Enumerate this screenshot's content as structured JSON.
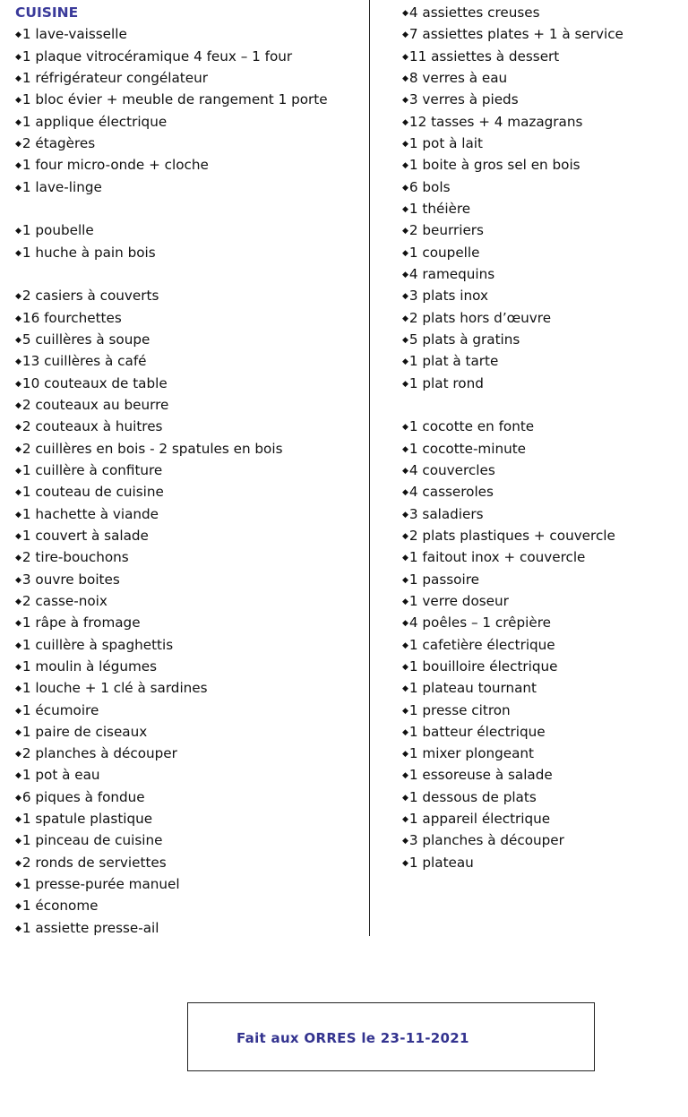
{
  "heading": "CUISINE",
  "bullet_icon": "diamond-bullet",
  "heading_color": "#3a3a9a",
  "left_items": [
    "1 lave-vaisselle",
    "1 plaque vitrocéramique 4 feux – 1 four",
    "1 réfrigérateur congélateur",
    "1 bloc évier + meuble de rangement 1 porte",
    "1 applique électrique",
    "2 étagères",
    "1 four micro-onde + cloche",
    "1 lave-linge",
    "",
    "1 poubelle",
    "1 huche à pain bois",
    "",
    "2 casiers à couverts",
    "16 fourchettes",
    "5 cuillères à soupe",
    "13 cuillères à café",
    "10 couteaux de table",
    "2 couteaux au beurre",
    "2 couteaux à huitres",
    "2 cuillères en bois  - 2 spatules en bois",
    "1 cuillère à confiture",
    "1 couteau de cuisine",
    "1 hachette à viande",
    "1 couvert à salade",
    "2 tire-bouchons",
    "3 ouvre boites",
    "2 casse-noix",
    "1 râpe à fromage",
    "1 cuillère à spaghettis",
    "1 moulin à légumes",
    "1 louche + 1 clé à sardines",
    "1 écumoire",
    "1 paire de ciseaux",
    "2 planches à découper",
    "1 pot à eau",
    "6 piques à fondue",
    "1 spatule plastique",
    "1 pinceau de cuisine",
    "2 ronds de serviettes",
    "1 presse-purée manuel",
    "1 économe",
    "1 assiette presse-ail"
  ],
  "right_items": [
    "4 assiettes creuses",
    "7 assiettes plates + 1 à service",
    "11 assiettes à dessert",
    "8 verres à eau",
    "3 verres à pieds",
    "12 tasses + 4 mazagrans",
    "1 pot à lait",
    "1 boite à gros sel en bois",
    "6 bols",
    "1 théière",
    "2 beurriers",
    "1 coupelle",
    "4 ramequins",
    "3 plats inox",
    "2 plats hors d’œuvre",
    "5 plats à gratins",
    "1 plat à tarte",
    "1 plat rond",
    "",
    "1 cocotte en fonte",
    "1 cocotte-minute",
    "4 couvercles",
    "4 casseroles",
    "3 saladiers",
    "2 plats plastiques + couvercle",
    "1 faitout inox + couvercle",
    "1 passoire",
    "1 verre doseur",
    "4 poêles – 1 crêpière",
    "1 cafetière électrique",
    "1 bouilloire électrique",
    "1 plateau tournant",
    "1 presse citron",
    "1 batteur électrique",
    "1 mixer plongeant",
    "1 essoreuse à salade",
    "1 dessous de plats",
    "1 appareil électrique",
    "3 planches à découper",
    "1 plateau"
  ],
  "footer": {
    "signature_line": "Fait aux ORRES le 23-11-2021",
    "color": "#33338f"
  }
}
